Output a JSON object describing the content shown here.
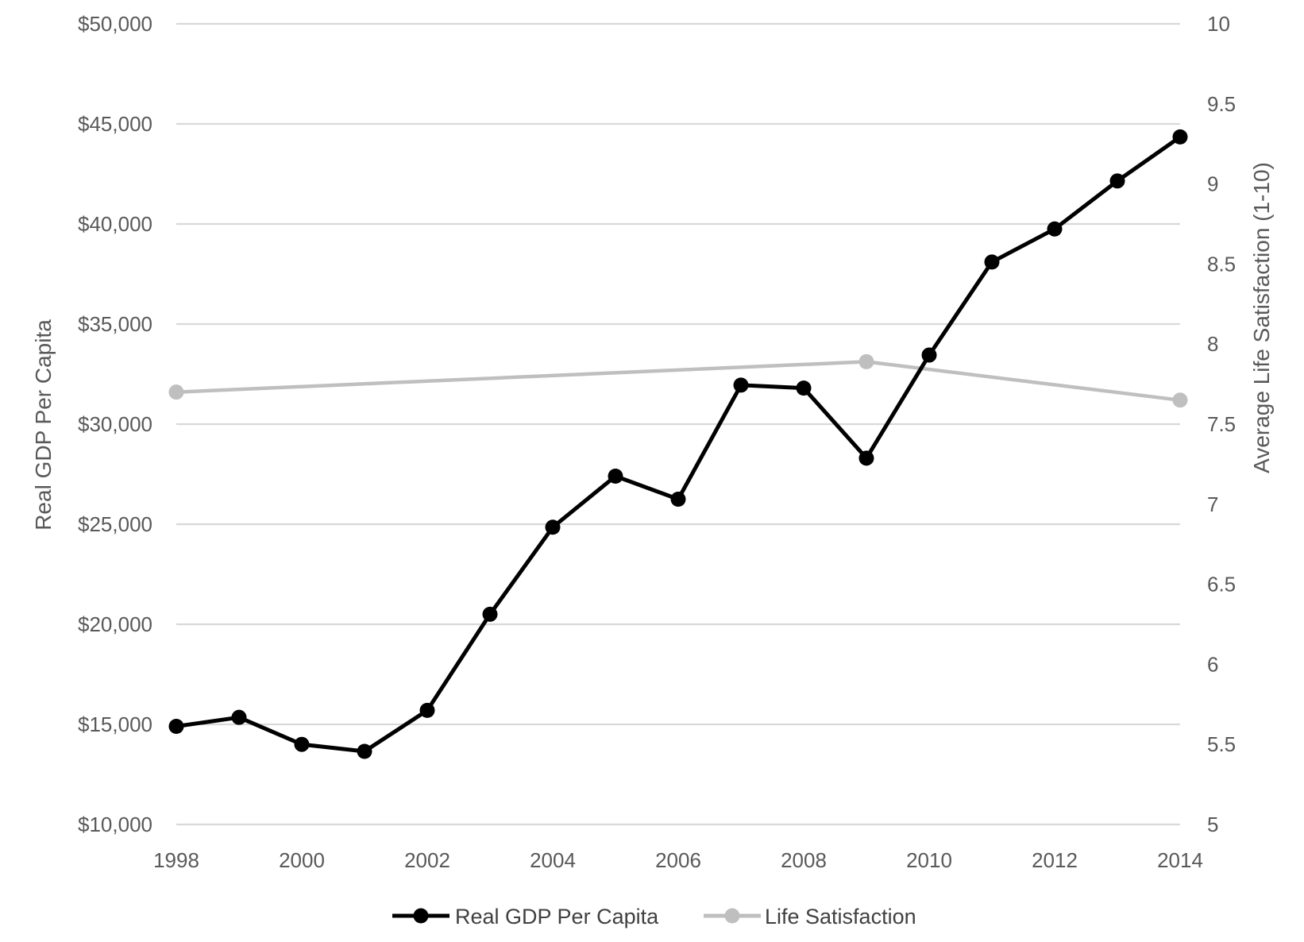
{
  "chart_data": {
    "type": "line",
    "y_axis_left": {
      "label": "Real GDP Per Capita",
      "ylim": [
        10000,
        50000
      ],
      "ticks": [
        10000,
        15000,
        20000,
        25000,
        30000,
        35000,
        40000,
        45000,
        50000
      ],
      "tick_labels": [
        "$10,000",
        "$15,000",
        "$20,000",
        "$25,000",
        "$30,000",
        "$35,000",
        "$40,000",
        "$45,000",
        "$50,000"
      ]
    },
    "y_axis_right": {
      "label": "Average Life Satisfaction (1-10)",
      "ylim": [
        5,
        10
      ],
      "ticks": [
        5,
        5.5,
        6,
        6.5,
        7,
        7.5,
        8,
        8.5,
        9,
        9.5,
        10
      ],
      "tick_labels": [
        "5",
        "5.5",
        "6",
        "6.5",
        "7",
        "7.5",
        "8",
        "8.5",
        "9",
        "9.5",
        "10"
      ]
    },
    "x_axis": {
      "xlim": [
        1998,
        2014
      ],
      "ticks": [
        1998,
        2000,
        2002,
        2004,
        2006,
        2008,
        2010,
        2012,
        2014
      ],
      "tick_labels": [
        "1998",
        "2000",
        "2002",
        "2004",
        "2006",
        "2008",
        "2010",
        "2012",
        "2014"
      ]
    },
    "grid": true,
    "legend_position": "bottom",
    "series": [
      {
        "name": "Real GDP Per Capita",
        "axis": "left",
        "color": "#000000",
        "x": [
          1998,
          1999,
          2000,
          2001,
          2002,
          2003,
          2004,
          2005,
          2006,
          2007,
          2008,
          2009,
          2010,
          2011,
          2012,
          2013,
          2014
        ],
        "values": [
          14900,
          15350,
          14000,
          13650,
          15700,
          20500,
          24850,
          27400,
          26250,
          31950,
          31800,
          28300,
          33450,
          38100,
          39750,
          42150,
          44350
        ]
      },
      {
        "name": "Life Satisfaction",
        "axis": "right",
        "color": "#bfbfbf",
        "x": [
          1998,
          2009,
          2014
        ],
        "values": [
          7.7,
          7.89,
          7.65
        ]
      }
    ]
  }
}
